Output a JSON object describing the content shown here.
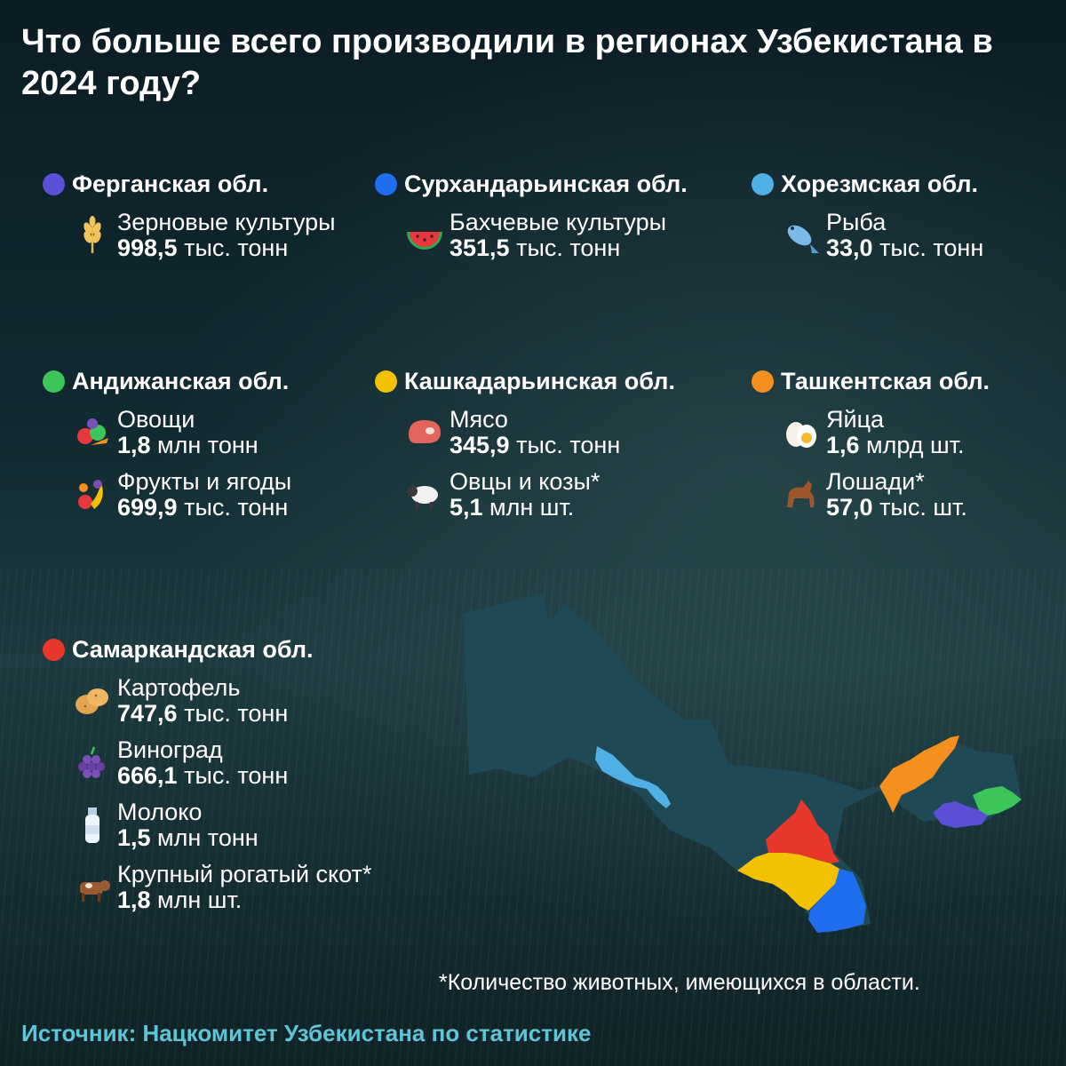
{
  "title": "Что больше всего производили в регионах Узбекистана в 2024 году?",
  "regions": [
    {
      "name": "Ферганская обл.",
      "color": "#5b4fd6",
      "items": [
        {
          "label": "Зерновые культуры",
          "number": "998,5",
          "unit": " тыс. тонн",
          "icon": "wheat-icon"
        }
      ]
    },
    {
      "name": "Сурхандарьинская обл.",
      "color": "#1f6ef0",
      "items": [
        {
          "label": "Бахчевые культуры",
          "number": "351,5",
          "unit": " тыс. тонн",
          "icon": "watermelon-icon"
        }
      ]
    },
    {
      "name": "Хорезмская обл.",
      "color": "#4fb0e6",
      "items": [
        {
          "label": "Рыба",
          "number": "33,0",
          "unit": " тыс. тонн",
          "icon": "fish-icon"
        }
      ]
    },
    {
      "name": "Андижанская обл.",
      "color": "#3cc65a",
      "items": [
        {
          "label": "Овощи",
          "number": "1,8",
          "unit": " млн тонн",
          "icon": "vegetables-icon"
        },
        {
          "label": "Фрукты и ягоды",
          "number": "699,9",
          "unit": " тыс. тонн",
          "icon": "fruits-icon"
        }
      ]
    },
    {
      "name": "Кашкадарьинская обл.",
      "color": "#f2c200",
      "items": [
        {
          "label": "Мясо",
          "number": "345,9",
          "unit": " тыс. тонн",
          "icon": "meat-icon"
        },
        {
          "label": "Овцы и козы*",
          "number": "5,1",
          "unit": " млн шт.",
          "icon": "sheep-icon"
        }
      ]
    },
    {
      "name": "Ташкентская обл.",
      "color": "#f5901e",
      "items": [
        {
          "label": "Яйца",
          "number": "1,6",
          "unit": " млрд шт.",
          "icon": "eggs-icon"
        },
        {
          "label": "Лошади*",
          "number": "57,0",
          "unit": " тыс. шт.",
          "icon": "horse-icon"
        }
      ]
    },
    {
      "name": "Самаркандская обл.",
      "color": "#e8382c",
      "items": [
        {
          "label": "Картофель",
          "number": "747,6",
          "unit": " тыс. тонн",
          "icon": "potato-icon"
        },
        {
          "label": "Виноград",
          "number": "666,1",
          "unit": " тыс. тонн",
          "icon": "grapes-icon"
        },
        {
          "label": "Молоко",
          "number": "1,5",
          "unit": " млн тонн",
          "icon": "milk-icon"
        },
        {
          "label": "Крупный рогатый скот*",
          "number": "1,8",
          "unit": " млн шт.",
          "icon": "cow-icon"
        }
      ]
    }
  ],
  "footnote": "*Количество животных, имеющихся в области.",
  "source": "Источник: Нацкомитет Узбекистана по статистике",
  "map": {
    "base_color": "#1f4a55",
    "highlighted": [
      "Хорезмская обл.",
      "Самаркандская обл.",
      "Кашкадарьинская обл.",
      "Сурхандарьинская обл.",
      "Ташкентская обл.",
      "Ферганская обл.",
      "Андижанская обл."
    ]
  }
}
